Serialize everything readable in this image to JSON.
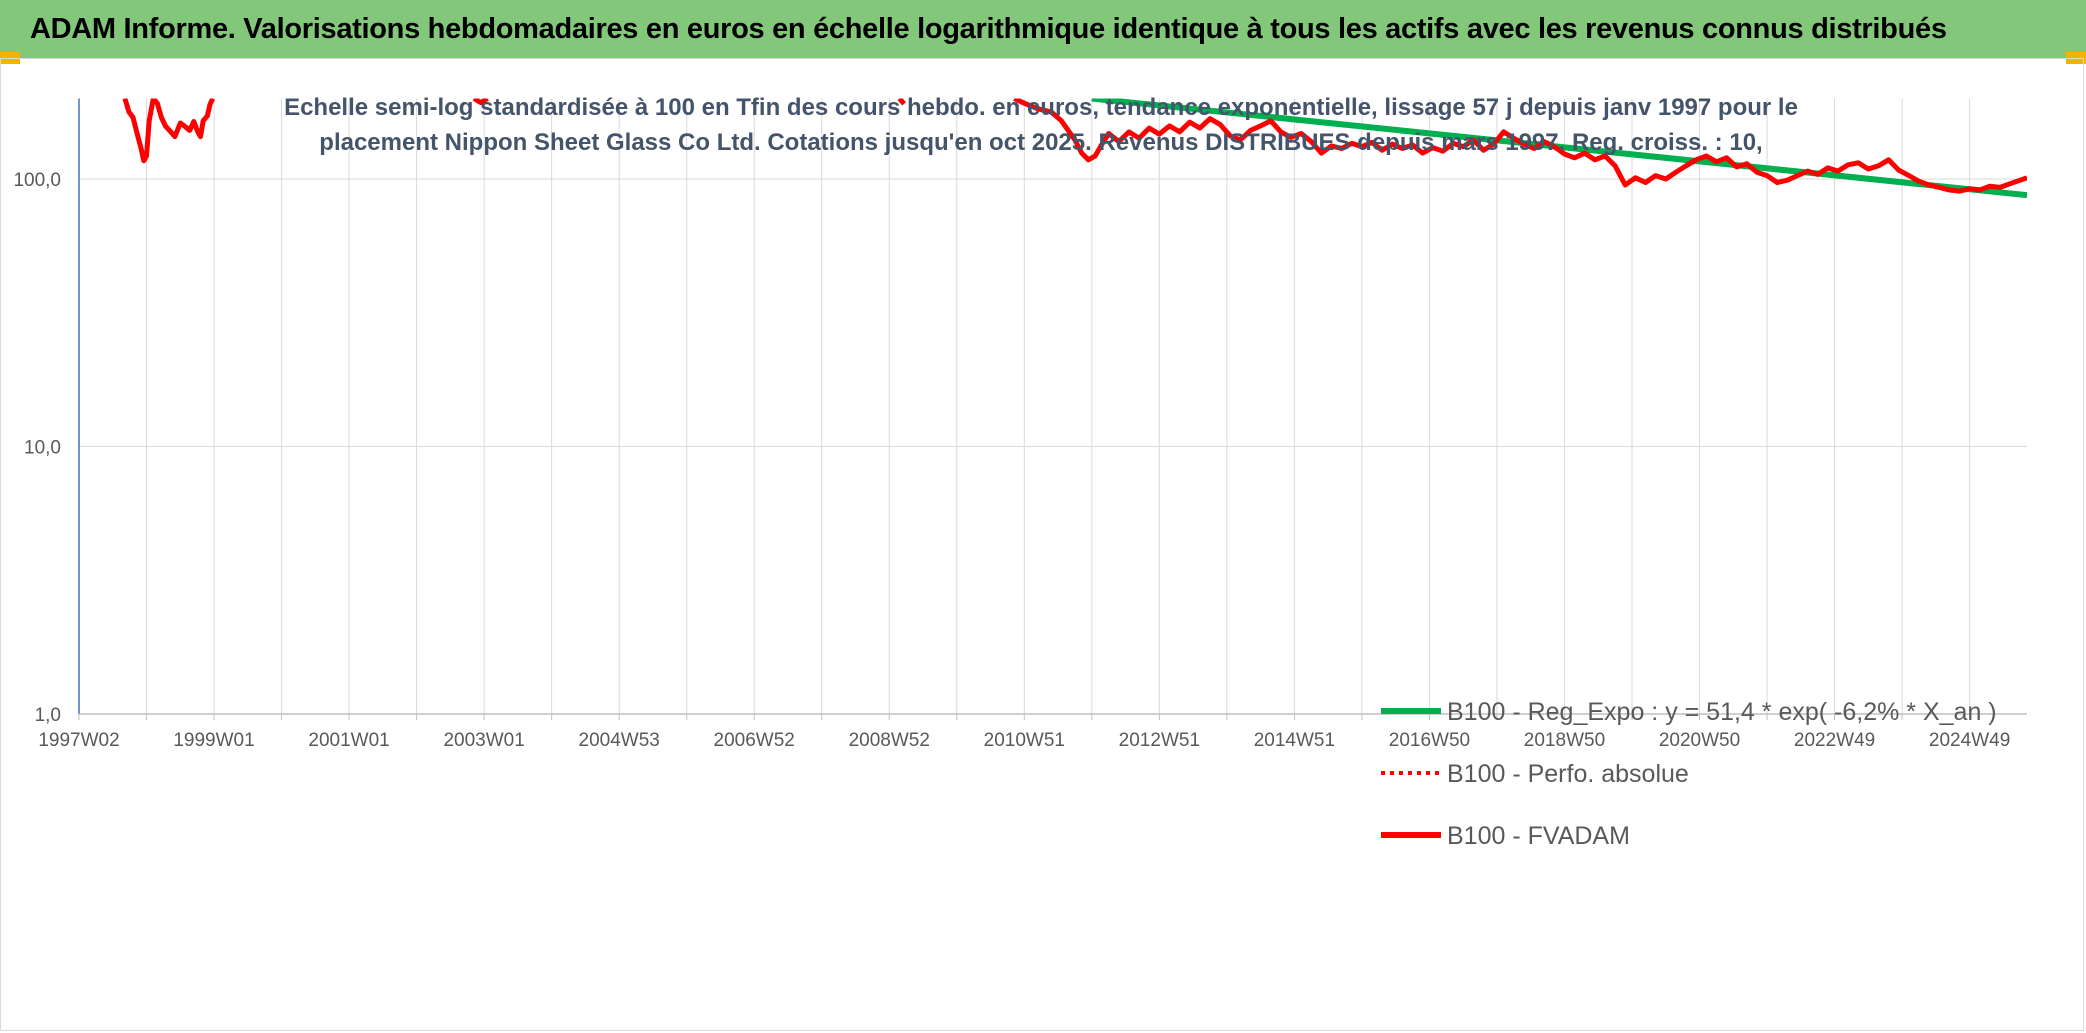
{
  "header": {
    "title": "ADAM Informe. Valorisations hebdomadaires en euros en échelle logarithmique identique à tous les actifs avec les revenus connus distribués",
    "background_color": "#82c77a",
    "corner_color": "#f3b300"
  },
  "chart_data": {
    "type": "line",
    "title_lines": [
      "Echelle semi-log standardisée à 100 en Tfin des cours hebdo. en euros, tendance exponentielle, lissage 57 j depuis janv 1997 pour le",
      "placement Nippon Sheet Glass Co Ltd. Cotations jusqu'en oct 2025. Revenus DISTRIBUES depuis mars 1997. Reg. croiss. : 10,"
    ],
    "y_scale": "log",
    "ylim": [
      1,
      200
    ],
    "y_ticks": [
      {
        "value": 1,
        "label": "1,0"
      },
      {
        "value": 10,
        "label": "10,0"
      },
      {
        "value": 100,
        "label": "100,0"
      }
    ],
    "xlim": [
      1997.0,
      2025.85
    ],
    "x_ticks": [
      {
        "value": 1997.0,
        "label": "1997W02"
      },
      {
        "value": 1999.0,
        "label": "1999W01"
      },
      {
        "value": 2001.0,
        "label": "2001W01"
      },
      {
        "value": 2003.0,
        "label": "2003W01"
      },
      {
        "value": 2005.0,
        "label": "2004W53"
      },
      {
        "value": 2007.0,
        "label": "2006W52"
      },
      {
        "value": 2009.0,
        "label": "2008W52"
      },
      {
        "value": 2011.0,
        "label": "2010W51"
      },
      {
        "value": 2013.0,
        "label": "2012W51"
      },
      {
        "value": 2015.0,
        "label": "2014W51"
      },
      {
        "value": 2017.0,
        "label": "2016W50"
      },
      {
        "value": 2019.0,
        "label": "2018W50"
      },
      {
        "value": 2021.0,
        "label": "2020W50"
      },
      {
        "value": 2023.0,
        "label": "2022W49"
      },
      {
        "value": 2025.0,
        "label": "2024W49"
      }
    ],
    "grid": true,
    "legend_position": "right, lower middle",
    "legend": [
      {
        "label": "B100 - Reg_Expo : y = 51,4 * exp( -6,2% *  X_an )",
        "color": "#00b050",
        "style": "solid"
      },
      {
        "label": "B100 - Perfo. absolue",
        "color": "#ff0000",
        "style": "dotted"
      },
      {
        "label": "B100 - FVADAM",
        "color": "#ff0000",
        "style": "solid"
      }
    ],
    "series": [
      {
        "name": "B100 - Reg_Expo : y = 51,4 * exp( -6,2% *  X_an )",
        "color": "#00b050",
        "x": [
          2012.0,
          2025.85
        ],
        "y": [
          200,
          87
        ]
      },
      {
        "name": "B100 - FVADAM",
        "color": "#ff0000",
        "segments": [
          {
            "x": [
              1997.68,
              1997.74,
              1997.8,
              1997.86,
              1997.92,
              1997.96,
              1998.0,
              1998.04,
              1998.1,
              1998.16,
              1998.22,
              1998.28,
              1998.34,
              1998.42,
              1998.5,
              1998.56,
              1998.64,
              1998.7,
              1998.76,
              1998.8,
              1998.84,
              1998.9,
              1998.94,
              1998.98
            ],
            "y": [
              200,
              178,
              170,
              148,
              130,
              117,
              122,
              165,
              200,
              192,
              170,
              158,
              152,
              144,
              162,
              158,
              152,
              164,
              150,
              144,
              165,
              172,
              190,
              200
            ]
          },
          {
            "x": [
              2002.85,
              2002.95,
              2003.05
            ],
            "y": [
              200,
              193,
              200
            ]
          },
          {
            "x": [
              2009.15,
              2009.22
            ],
            "y": [
              200,
              191
            ]
          },
          {
            "x": [
              2010.85,
              2011.0,
              2011.2,
              2011.4,
              2011.55,
              2011.65,
              2011.75,
              2011.85,
              2011.95,
              2012.05,
              2012.15,
              2012.25,
              2012.4,
              2012.55,
              2012.7,
              2012.85,
              2013.0,
              2013.15,
              2013.3,
              2013.45,
              2013.6,
              2013.75,
              2013.9,
              2014.05,
              2014.2,
              2014.35,
              2014.5,
              2014.65,
              2014.8,
              2014.95,
              2015.1,
              2015.25,
              2015.4,
              2015.55,
              2015.7,
              2015.85,
              2016.0,
              2016.15,
              2016.3,
              2016.45,
              2016.6,
              2016.75,
              2016.9,
              2017.05,
              2017.2,
              2017.35,
              2017.5,
              2017.65,
              2017.8,
              2017.95,
              2018.1,
              2018.25,
              2018.4,
              2018.55,
              2018.7,
              2018.85,
              2019.0,
              2019.15,
              2019.3,
              2019.45,
              2019.6,
              2019.75,
              2019.9,
              2020.05,
              2020.2,
              2020.35,
              2020.5,
              2020.65,
              2020.8,
              2020.95,
              2021.1,
              2021.25,
              2021.4,
              2021.55,
              2021.7,
              2021.85,
              2022.0,
              2022.15,
              2022.3,
              2022.45,
              2022.6,
              2022.75,
              2022.9,
              2023.05,
              2023.2,
              2023.35,
              2023.5,
              2023.65,
              2023.8,
              2023.95,
              2024.1,
              2024.25,
              2024.4,
              2024.55,
              2024.7,
              2024.85,
              2025.0,
              2025.15,
              2025.3,
              2025.45,
              2025.6,
              2025.75,
              2025.85
            ],
            "y": [
              200,
              192,
              183,
              178,
              165,
              152,
              140,
              125,
              118,
              122,
              135,
              148,
              138,
              150,
              142,
              155,
              147,
              158,
              150,
              163,
              155,
              168,
              160,
              145,
              140,
              152,
              158,
              165,
              150,
              143,
              148,
              138,
              125,
              133,
              130,
              136,
              132,
              137,
              128,
              135,
              130,
              134,
              125,
              131,
              127,
              136,
              132,
              140,
              128,
              135,
              150,
              142,
              135,
              130,
              138,
              132,
              124,
              120,
              125,
              118,
              122,
              112,
              95,
              101,
              97,
              103,
              100,
              106,
              112,
              118,
              122,
              116,
              120,
              111,
              114,
              106,
              103,
              97,
              99,
              103,
              107,
              104,
              110,
              107,
              113,
              115,
              109,
              112,
              118,
              108,
              103,
              98,
              95,
              93,
              91,
              90,
              92,
              91,
              94,
              93,
              96,
              99,
              101
            ]
          }
        ]
      }
    ]
  }
}
